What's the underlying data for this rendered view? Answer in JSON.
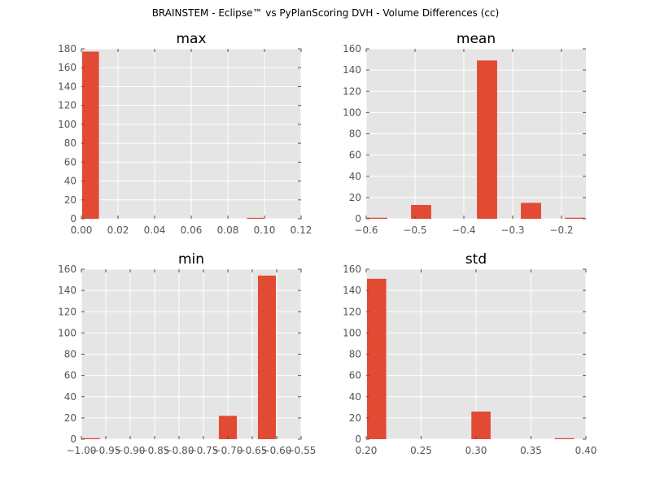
{
  "suptitle": "BRAINSTEM - Eclipse™ vs PyPlanScoring DVH - Volume Differences (cc)",
  "colors": {
    "bar": "#e24a33",
    "panel_bg": "#e5e5e5",
    "grid": "#ffffff",
    "tick_text": "#555555"
  },
  "chart_data": [
    {
      "type": "bar",
      "title": "max",
      "xlim": [
        0.0,
        0.12
      ],
      "ylim": [
        0,
        180
      ],
      "xticks": [
        0.0,
        0.02,
        0.04,
        0.06,
        0.08,
        0.1,
        0.12
      ],
      "xtick_labels": [
        "0.00",
        "0.02",
        "0.04",
        "0.06",
        "0.08",
        "0.10",
        "0.12"
      ],
      "yticks": [
        0,
        20,
        40,
        60,
        80,
        100,
        120,
        140,
        160,
        180
      ],
      "ytick_labels": [
        "0",
        "20",
        "40",
        "60",
        "80",
        "100",
        "120",
        "140",
        "160",
        "180"
      ],
      "bin_edges": [
        0.0,
        0.01,
        0.02,
        0.03,
        0.04,
        0.05,
        0.06,
        0.07,
        0.08,
        0.09,
        0.1
      ],
      "values": [
        177,
        0,
        0,
        0,
        0,
        0,
        0,
        0,
        0,
        1
      ]
    },
    {
      "type": "bar",
      "title": "mean",
      "xlim": [
        -0.6,
        -0.15
      ],
      "ylim": [
        0,
        160
      ],
      "xticks": [
        -0.6,
        -0.5,
        -0.4,
        -0.3,
        -0.2
      ],
      "xtick_labels": [
        "−0.6",
        "−0.5",
        "−0.4",
        "−0.3",
        "−0.2"
      ],
      "yticks": [
        0,
        20,
        40,
        60,
        80,
        100,
        120,
        140,
        160
      ],
      "ytick_labels": [
        "0",
        "20",
        "40",
        "60",
        "80",
        "100",
        "120",
        "140",
        "160"
      ],
      "bin_edges": [
        -0.6,
        -0.555,
        -0.51,
        -0.465,
        -0.42,
        -0.375,
        -0.33,
        -0.285,
        -0.24,
        -0.195,
        -0.15
      ],
      "values": [
        1,
        0,
        13,
        0,
        0,
        149,
        0,
        15,
        0,
        1
      ]
    },
    {
      "type": "bar",
      "title": "min",
      "xlim": [
        -1.0,
        -0.55
      ],
      "ylim": [
        0,
        160
      ],
      "xticks": [
        -1.0,
        -0.95,
        -0.9,
        -0.85,
        -0.8,
        -0.75,
        -0.7,
        -0.65,
        -0.6,
        -0.55
      ],
      "xtick_labels": [
        "−1.00",
        "−0.95",
        "−0.90",
        "−0.85",
        "−0.80",
        "−0.75",
        "−0.70",
        "−0.65",
        "−0.60",
        "−0.55"
      ],
      "yticks": [
        0,
        20,
        40,
        60,
        80,
        100,
        120,
        140,
        160
      ],
      "ytick_labels": [
        "0",
        "20",
        "40",
        "60",
        "80",
        "100",
        "120",
        "140",
        "160"
      ],
      "bin_edges": [
        -1.0,
        -0.96,
        -0.92,
        -0.88,
        -0.84,
        -0.8,
        -0.76,
        -0.72,
        -0.68,
        -0.64,
        -0.6
      ],
      "values": [
        1,
        0,
        0,
        0,
        0,
        0,
        0,
        22,
        0,
        154
      ]
    },
    {
      "type": "bar",
      "title": "std",
      "xlim": [
        0.2,
        0.4
      ],
      "ylim": [
        0,
        160
      ],
      "xticks": [
        0.2,
        0.25,
        0.3,
        0.35,
        0.4
      ],
      "xtick_labels": [
        "0.20",
        "0.25",
        "0.30",
        "0.35",
        "0.40"
      ],
      "yticks": [
        0,
        20,
        40,
        60,
        80,
        100,
        120,
        140,
        160
      ],
      "ytick_labels": [
        "0",
        "20",
        "40",
        "60",
        "80",
        "100",
        "120",
        "140",
        "160"
      ],
      "bin_edges": [
        0.2,
        0.219,
        0.238,
        0.257,
        0.276,
        0.295,
        0.314,
        0.333,
        0.352,
        0.371,
        0.39
      ],
      "values": [
        151,
        0,
        0,
        0,
        0,
        26,
        0,
        0,
        0,
        1
      ]
    }
  ]
}
